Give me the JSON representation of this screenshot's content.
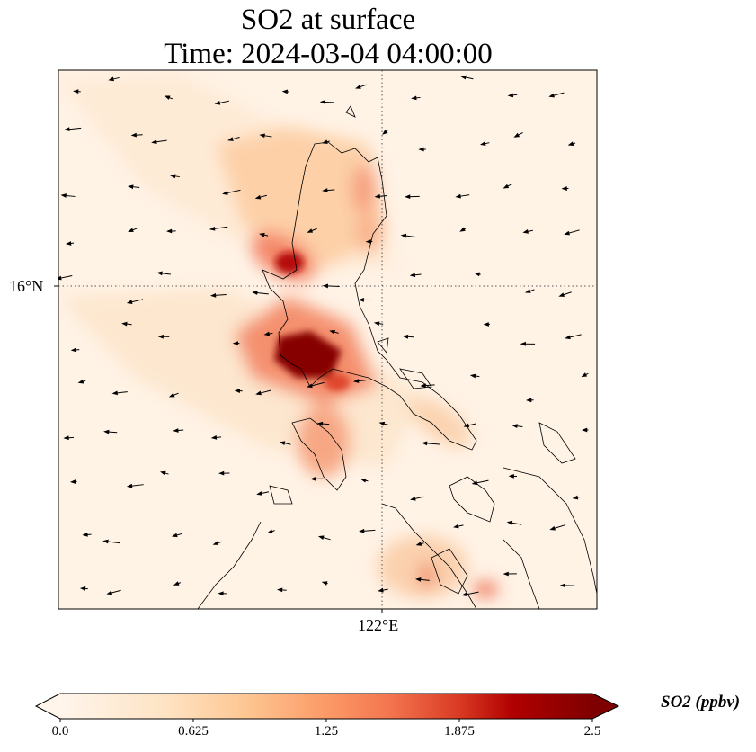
{
  "title": {
    "line1": "SO2 at surface",
    "line2": "Time: 2024-03-04 04:00:00"
  },
  "map": {
    "lat_label": "16°N",
    "lon_label": "122°E",
    "gridlines": "dotted",
    "vectors": "wind arrows, predominantly easterly (pointing west)"
  },
  "colorbar": {
    "label": "SO2 (ppbv)",
    "ticks": [
      "0.0",
      "0.625",
      "1.25",
      "1.875",
      "2.5"
    ],
    "range": [
      0,
      2.5
    ],
    "extend": "both",
    "colormap": [
      "#fff5eb",
      "#fdd49e",
      "#fdbb84",
      "#fc8d59",
      "#ef6548",
      "#d7301f",
      "#b30000",
      "#7f0000"
    ]
  }
}
